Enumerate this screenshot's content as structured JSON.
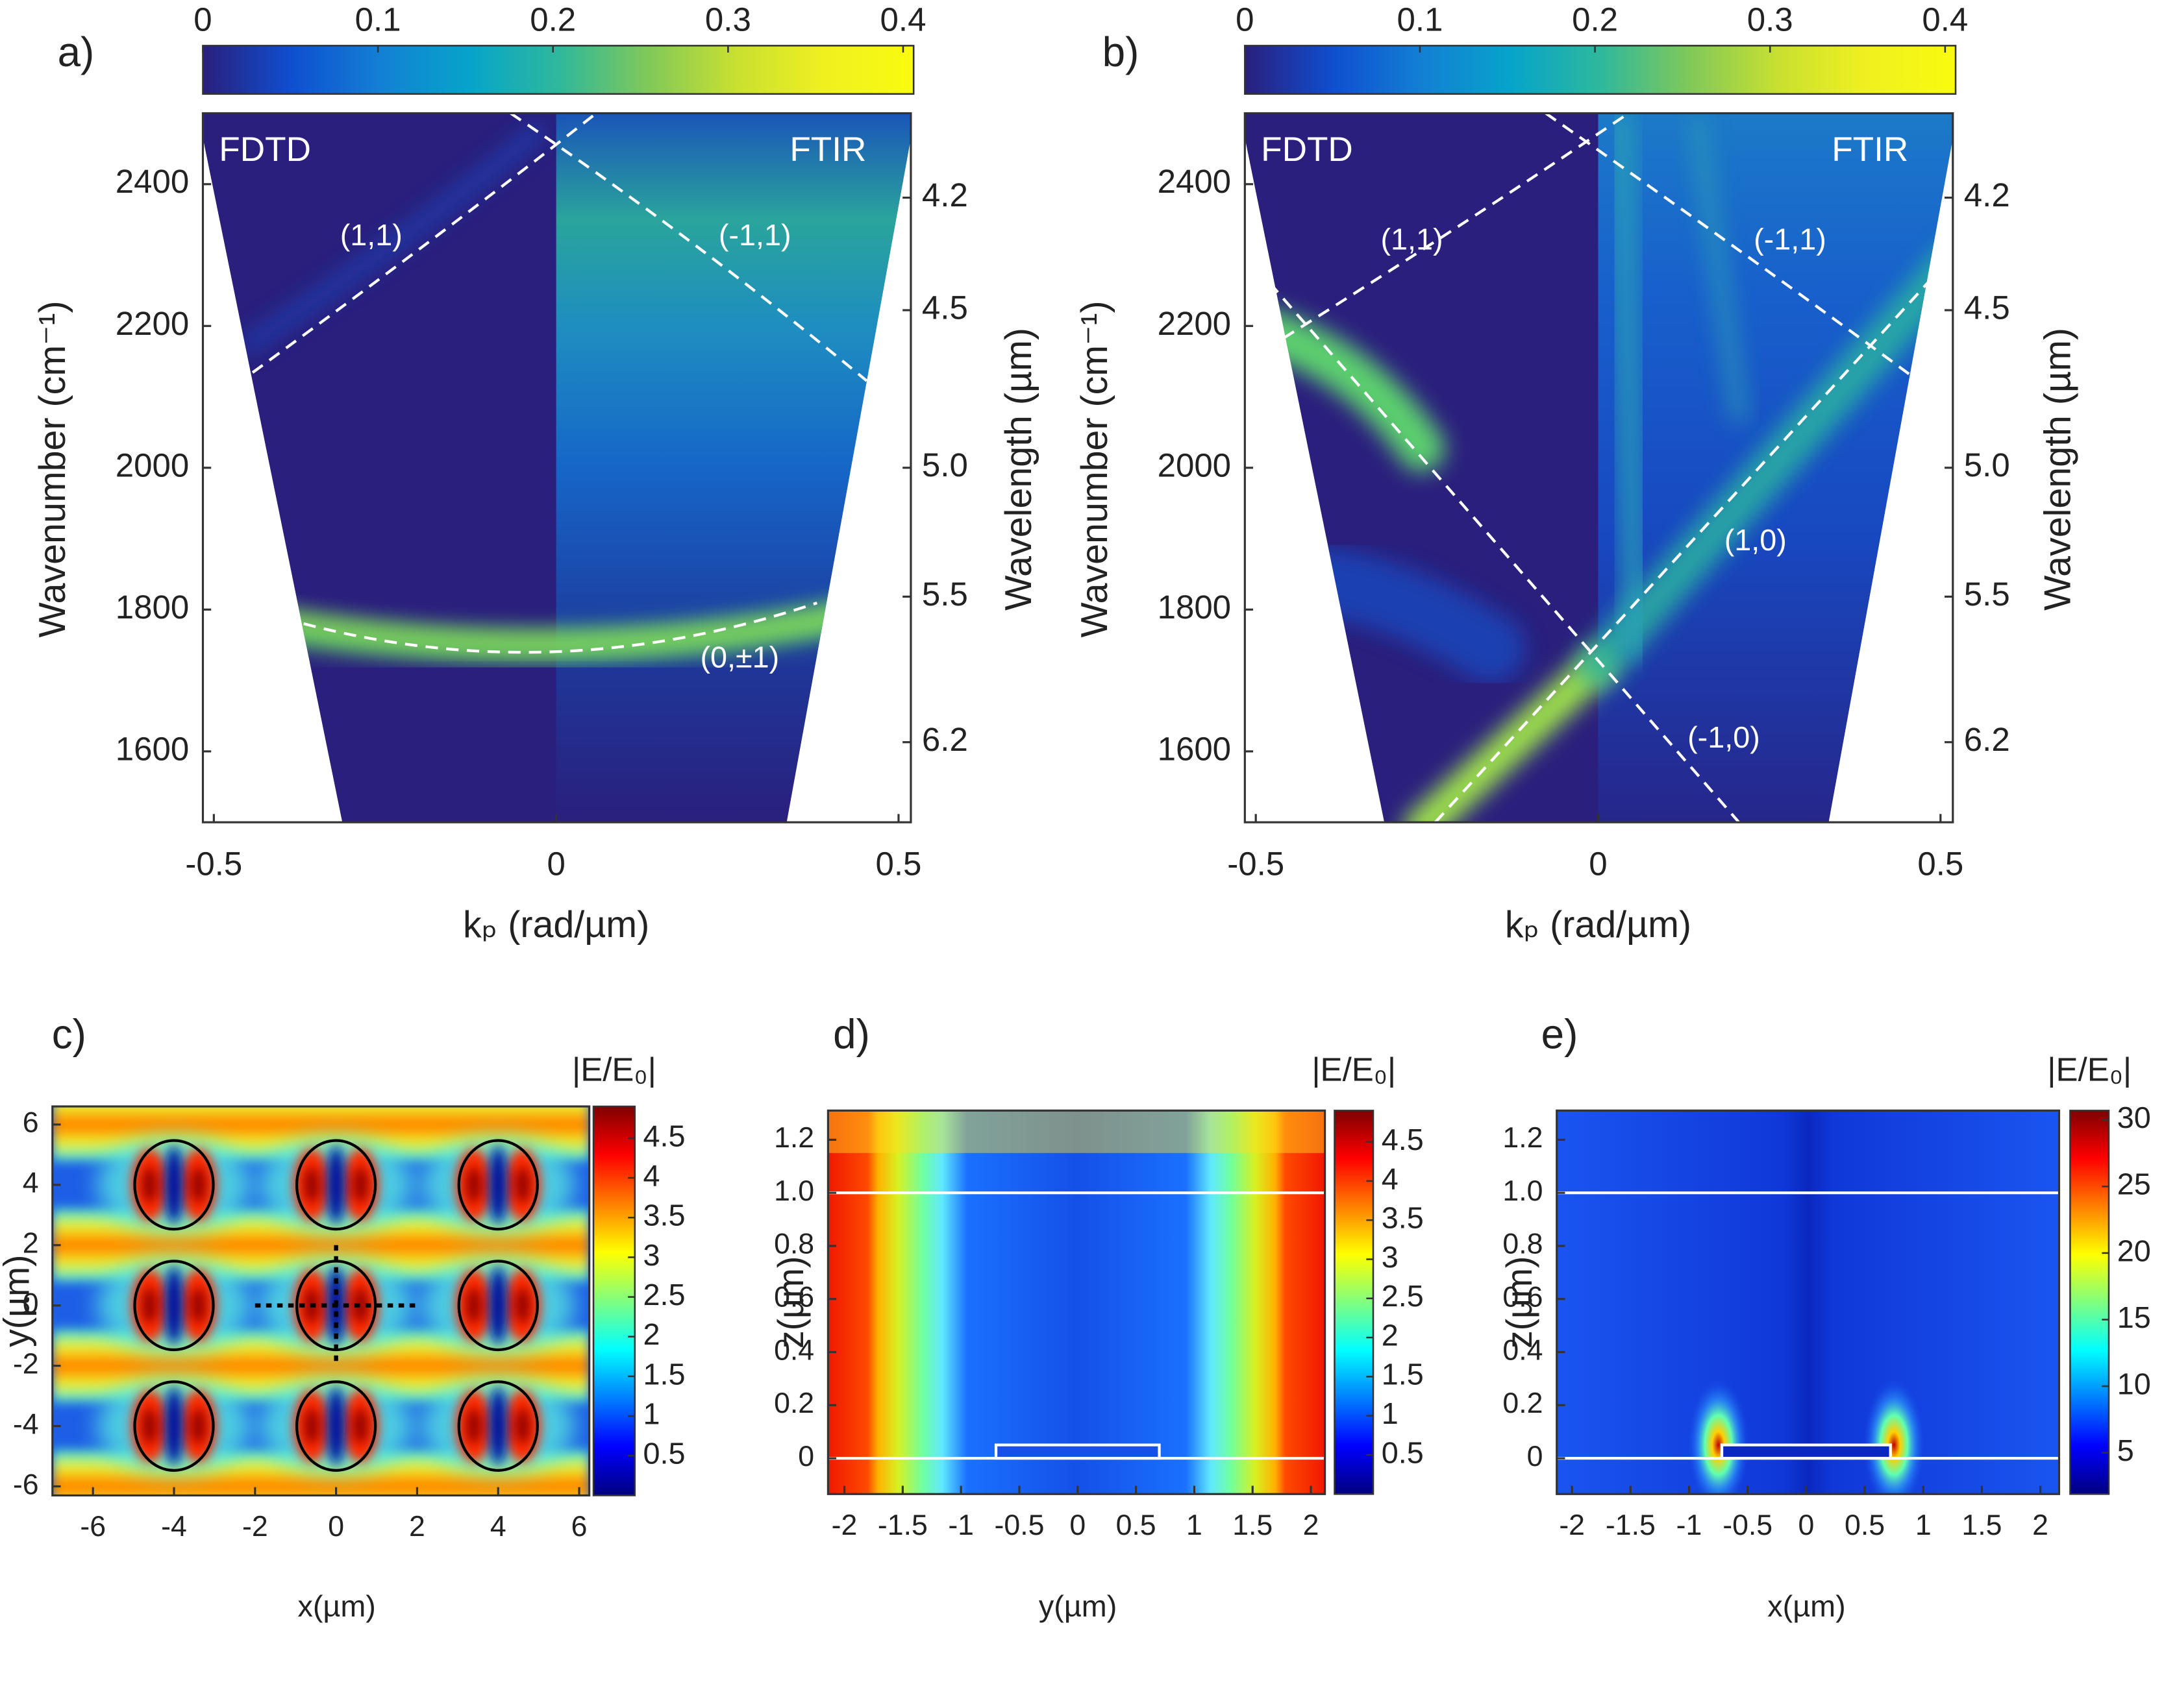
{
  "chart_data": [
    {
      "type": "heatmap",
      "panel_label": "a)",
      "xlabel": "kₚ (rad/µm)",
      "ylabel": "Wavenumber (cm⁻¹)",
      "y2label": "Wavelength (µm)",
      "xlim": [
        -0.516,
        0.518
      ],
      "xticks": [
        -0.5,
        0,
        0.5
      ],
      "ylim": [
        1500,
        2500
      ],
      "yticks": [
        1600,
        1800,
        2000,
        2200,
        2400
      ],
      "y2lim": [
        6.667,
        4.0
      ],
      "y2scale": "reciprocal",
      "y2ticks": [
        4.2,
        4.5,
        {
          "value": 5,
          "label": "5.0"
        },
        5.5,
        6.2
      ],
      "colorbar": {
        "colormap": "parula",
        "lim": [
          0,
          0.406
        ],
        "ticks": [
          0,
          0.1,
          0.2,
          0.3,
          0.4
        ]
      },
      "annotations": [
        "FDTD",
        "FTIR",
        "(1,1)",
        "(-1,1)",
        "(0,±1)"
      ]
    },
    {
      "type": "heatmap",
      "panel_label": "b)",
      "xlabel": "kₚ (rad/µm)",
      "ylabel": "Wavenumber (cm⁻¹)",
      "y2label": "Wavelength (µm)",
      "xlim": [
        -0.516,
        0.518
      ],
      "xticks": [
        -0.5,
        0,
        0.5
      ],
      "ylim": [
        1500,
        2500
      ],
      "yticks": [
        1600,
        1800,
        2000,
        2200,
        2400
      ],
      "y2lim": [
        6.667,
        4.0
      ],
      "y2scale": "reciprocal",
      "y2ticks": [
        4.2,
        4.5,
        {
          "value": 5,
          "label": "5.0"
        },
        5.5,
        6.2
      ],
      "colorbar": {
        "colormap": "parula",
        "lim": [
          0,
          0.406
        ],
        "ticks": [
          0,
          0.1,
          0.2,
          0.3,
          0.4
        ]
      },
      "annotations": [
        "FDTD",
        "FTIR",
        "(1,1)",
        "(-1,1)",
        "(1,0)",
        "(-1,0)"
      ]
    },
    {
      "type": "heatmap",
      "panel_label": "c)",
      "xlabel": "x(µm)",
      "ylabel": "y(µm)",
      "xlim": [
        -7,
        6.25
      ],
      "xticks": [
        -6,
        -4,
        -2,
        0,
        2,
        4,
        6
      ],
      "ylim": [
        -6.3,
        6.6
      ],
      "yticks": [
        -6,
        -4,
        -2,
        0,
        2,
        4,
        6
      ],
      "colorbar": {
        "colormap": "jet",
        "label": "|E/E₀|",
        "lim": [
          0,
          4.9
        ],
        "ticks": [
          0.5,
          1,
          1.5,
          2,
          2.5,
          3,
          3.5,
          4,
          4.5
        ]
      }
    },
    {
      "type": "heatmap",
      "panel_label": "d)",
      "xlabel": "y(µm)",
      "ylabel": "z(µm)",
      "xlim": [
        -2.14,
        2.12
      ],
      "xticks": [
        -2,
        -1.5,
        -1,
        -0.5,
        0,
        0.5,
        1,
        1.5,
        2
      ],
      "ylim": [
        -0.135,
        1.31
      ],
      "yticks": [
        0,
        0.2,
        0.4,
        0.6,
        0.8,
        {
          "value": 1,
          "label": "1.0"
        },
        1.2
      ],
      "colorbar": {
        "colormap": "jet",
        "label": "|E/E₀|",
        "lim": [
          0,
          4.9
        ],
        "ticks": [
          0.5,
          1,
          1.5,
          2,
          2.5,
          3,
          3.5,
          4,
          4.5
        ]
      }
    },
    {
      "type": "heatmap",
      "panel_label": "e)",
      "xlabel": "x(µm)",
      "ylabel": "z(µm)",
      "xlim": [
        -2.13,
        2.16
      ],
      "xticks": [
        -2,
        -1.5,
        -1,
        -0.5,
        0,
        0.5,
        1,
        1.5,
        2
      ],
      "ylim": [
        -0.135,
        1.31
      ],
      "yticks": [
        0,
        0.2,
        0.4,
        0.6,
        0.8,
        {
          "value": 1,
          "label": "1.0"
        },
        1.2
      ],
      "colorbar": {
        "colormap": "jet",
        "label": "|E/E₀|",
        "lim": [
          1.9,
          30.7
        ],
        "ticks": [
          5,
          10,
          15,
          20,
          25,
          30
        ]
      }
    }
  ]
}
